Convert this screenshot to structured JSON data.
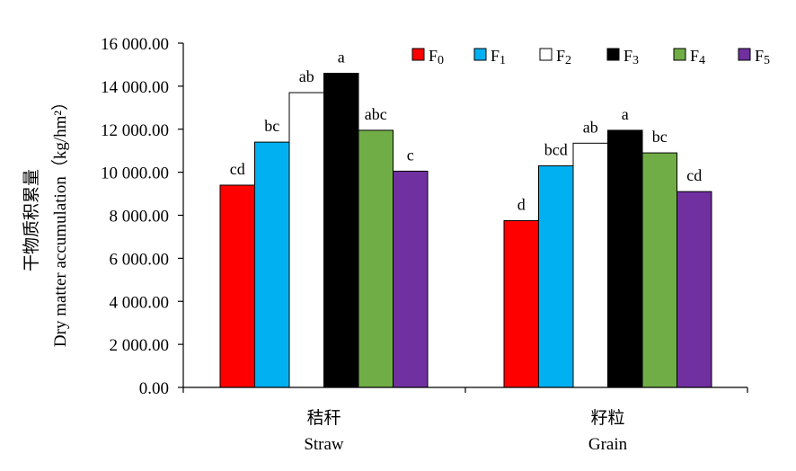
{
  "chart_data": {
    "type": "bar",
    "ylabel_cn": "干物质积累量",
    "ylabel_en": "Dry matter accumulation（kg/hm²）",
    "ylim": [
      0,
      16000
    ],
    "yticks": [
      "0.00",
      "2 000.00",
      "4 000.00",
      "6 000.00",
      "8 000.00",
      "10 000.00",
      "12 000.00",
      "14 000.00",
      "16 000.00"
    ],
    "ytick_values": [
      0,
      2000,
      4000,
      6000,
      8000,
      10000,
      12000,
      14000,
      16000
    ],
    "categories": [
      {
        "cn": "秸秆",
        "en": "Straw"
      },
      {
        "cn": "籽粒",
        "en": "Grain"
      }
    ],
    "series": [
      {
        "name": "F0",
        "base": "F",
        "sub": "0",
        "color": "#ff0000",
        "values": [
          9400,
          7750
        ],
        "labels": [
          "cd",
          "d"
        ]
      },
      {
        "name": "F1",
        "base": "F",
        "sub": "1",
        "color": "#00b0f0",
        "values": [
          11400,
          10300
        ],
        "labels": [
          "bc",
          "bcd"
        ]
      },
      {
        "name": "F2",
        "base": "F",
        "sub": "2",
        "color": "#ffffff",
        "values": [
          13700,
          11350
        ],
        "labels": [
          "ab",
          "ab"
        ]
      },
      {
        "name": "F3",
        "base": "F",
        "sub": "3",
        "color": "#000000",
        "values": [
          14600,
          11950
        ],
        "labels": [
          "a",
          "a"
        ]
      },
      {
        "name": "F4",
        "base": "F",
        "sub": "4",
        "color": "#70ad47",
        "values": [
          11950,
          10900
        ],
        "labels": [
          "abc",
          "bc"
        ]
      },
      {
        "name": "F5",
        "base": "F",
        "sub": "5",
        "color": "#7030a0",
        "values": [
          10050,
          9100
        ],
        "labels": [
          "c",
          "cd"
        ]
      }
    ],
    "legend_position": "top-right",
    "grid": false
  }
}
